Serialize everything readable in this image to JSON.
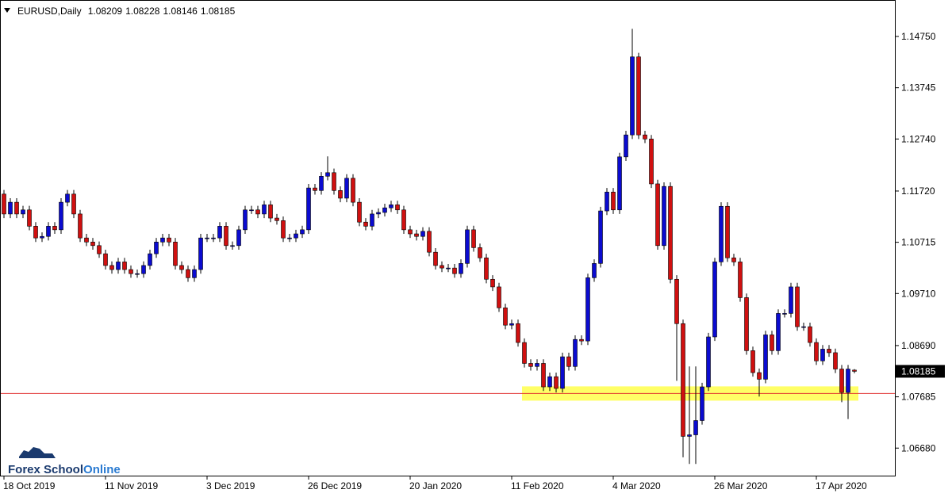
{
  "chart_data": {
    "type": "candlestick",
    "title": "EURUSD,Daily",
    "watermark": [
      "Forex School",
      "Online"
    ],
    "categories": [
      "18 Oct 2019",
      null,
      null,
      null,
      null,
      null,
      null,
      null,
      null,
      null,
      null,
      null,
      null,
      null,
      null,
      null,
      "11 Nov 2019",
      null,
      null,
      null,
      null,
      null,
      null,
      null,
      null,
      null,
      null,
      null,
      null,
      null,
      null,
      null,
      "3 Dec 2019",
      null,
      null,
      null,
      null,
      null,
      null,
      null,
      null,
      null,
      null,
      null,
      null,
      null,
      null,
      null,
      "26 Dec 2019",
      null,
      null,
      null,
      null,
      null,
      null,
      null,
      null,
      null,
      null,
      null,
      null,
      null,
      null,
      null,
      "20 Jan 2020",
      null,
      null,
      null,
      null,
      null,
      null,
      null,
      null,
      null,
      null,
      null,
      null,
      null,
      null,
      null,
      "11 Feb 2020",
      null,
      null,
      null,
      null,
      null,
      null,
      null,
      null,
      null,
      null,
      null,
      null,
      null,
      null,
      null,
      "4 Mar 2020",
      null,
      null,
      null,
      null,
      null,
      null,
      null,
      null,
      null,
      null,
      null,
      null,
      null,
      null,
      null,
      "26 Mar 2020",
      null,
      null,
      null,
      null,
      null,
      null,
      null,
      null,
      null,
      null,
      null,
      null,
      null,
      null,
      null,
      "17 Apr 2020",
      null,
      null,
      null,
      null,
      null,
      null
    ],
    "open": [
      1.1166,
      1.1127,
      1.115,
      1.1127,
      1.1135,
      1.1103,
      1.108,
      1.1083,
      1.1103,
      1.1096,
      1.115,
      1.1166,
      1.1127,
      1.108,
      1.1072,
      1.1065,
      1.1049,
      1.1026,
      1.1018,
      1.1033,
      1.1018,
      1.101,
      1.101,
      1.1026,
      1.1049,
      1.1072,
      1.108,
      1.1072,
      1.1026,
      1.1018,
      1.1002,
      1.1018,
      1.108,
      1.108,
      1.108,
      1.1103,
      1.1065,
      1.1065,
      1.1096,
      1.1135,
      1.1135,
      1.1127,
      1.1145,
      1.1119,
      1.1114,
      1.108,
      1.108,
      1.1088,
      1.1096,
      1.1178,
      1.1173,
      1.1201,
      1.1208,
      1.1173,
      1.1158,
      1.1197,
      1.115,
      1.1111,
      1.1103,
      1.1127,
      1.113,
      1.1139,
      1.1145,
      1.1135,
      1.1096,
      1.1088,
      1.1083,
      1.1093,
      1.1052,
      1.1026,
      1.1021,
      1.1021,
      1.101,
      1.103,
      1.1096,
      1.1061,
      1.1041,
      1.0999,
      1.0984,
      1.0943,
      1.0909,
      1.0912,
      1.0875,
      1.0834,
      1.0828,
      1.0834,
      1.0788,
      1.0808,
      1.0785,
      1.0847,
      1.0828,
      1.0881,
      1.0878,
      1.1002,
      1.103,
      1.1133,
      1.117,
      1.1135,
      1.1239,
      1.1282,
      1.1435,
      1.1282,
      1.1274,
      1.1186,
      1.1065,
      1.1181,
      1.0999,
      1.0912,
      1.0691,
      1.0694,
      1.0722,
      1.0788,
      1.0886,
      1.1033,
      1.1142,
      1.1041,
      1.1033,
      1.0963,
      1.0859,
      1.0816,
      1.0803,
      1.089,
      1.0859,
      1.0932,
      1.0932,
      1.0984,
      1.0906,
      1.0906,
      1.0875,
      1.0839,
      1.0862,
      1.0855,
      1.0823,
      1.0777,
      1.08209
    ],
    "high": [
      1.1174,
      1.1158,
      1.1158,
      1.1143,
      1.1143,
      1.1111,
      1.1091,
      1.1111,
      1.1111,
      1.1158,
      1.1174,
      1.1174,
      1.1135,
      1.1088,
      1.108,
      1.1073,
      1.1057,
      1.1034,
      1.1041,
      1.1041,
      1.1026,
      1.1018,
      1.1034,
      1.1057,
      1.108,
      1.1088,
      1.1088,
      1.108,
      1.1034,
      1.1026,
      1.1026,
      1.1088,
      1.1088,
      1.1088,
      1.1111,
      1.1111,
      1.1073,
      1.1104,
      1.1143,
      1.1143,
      1.1143,
      1.1153,
      1.1153,
      1.1127,
      1.1122,
      1.1088,
      1.1096,
      1.1104,
      1.1186,
      1.1186,
      1.1209,
      1.124,
      1.1216,
      1.1181,
      1.1205,
      1.1205,
      1.1158,
      1.1119,
      1.1135,
      1.1138,
      1.1147,
      1.1153,
      1.1153,
      1.1143,
      1.1104,
      1.1096,
      1.1101,
      1.1101,
      1.106,
      1.1034,
      1.1029,
      1.1029,
      1.1038,
      1.1104,
      1.1104,
      1.1069,
      1.1049,
      1.1007,
      1.0992,
      1.0951,
      1.092,
      1.092,
      1.0883,
      1.0842,
      1.0842,
      1.0842,
      1.0816,
      1.0816,
      1.0855,
      1.0855,
      1.0889,
      1.0889,
      1.101,
      1.1038,
      1.1141,
      1.1178,
      1.1178,
      1.1247,
      1.129,
      1.149,
      1.1443,
      1.129,
      1.1282,
      1.1194,
      1.1189,
      1.1189,
      1.1007,
      1.092,
      1.0828,
      1.0828,
      1.0796,
      1.0894,
      1.1041,
      1.115,
      1.115,
      1.1049,
      1.1041,
      1.0971,
      1.0867,
      1.0824,
      1.0898,
      1.0898,
      1.094,
      1.094,
      1.0992,
      1.0992,
      1.0914,
      1.0914,
      1.0883,
      1.087,
      1.087,
      1.0863,
      1.0831,
      1.0831,
      1.08228
    ],
    "low": [
      1.1119,
      1.1119,
      1.1119,
      1.1119,
      1.1095,
      1.1072,
      1.1072,
      1.1075,
      1.1088,
      1.1088,
      1.1142,
      1.1119,
      1.1072,
      1.1064,
      1.1057,
      1.1041,
      1.1018,
      1.101,
      1.101,
      1.101,
      1.1002,
      1.1002,
      1.1002,
      1.1018,
      1.1041,
      1.1064,
      1.1064,
      1.1018,
      1.101,
      1.0994,
      1.0994,
      1.101,
      1.1072,
      1.1072,
      1.1072,
      1.1057,
      1.1057,
      1.1057,
      1.1088,
      1.1127,
      1.1119,
      1.1119,
      1.1111,
      1.1106,
      1.1072,
      1.1072,
      1.1072,
      1.108,
      1.1088,
      1.1165,
      1.1165,
      1.1193,
      1.1165,
      1.115,
      1.115,
      1.1142,
      1.1103,
      1.1095,
      1.1095,
      1.1119,
      1.1122,
      1.1131,
      1.1127,
      1.1088,
      1.108,
      1.1075,
      1.1075,
      1.1044,
      1.1018,
      1.1013,
      1.1013,
      1.1002,
      1.1002,
      1.1022,
      1.1053,
      1.1033,
      1.0991,
      1.0976,
      1.0935,
      1.0901,
      1.0901,
      1.0867,
      1.0826,
      1.082,
      1.082,
      1.078,
      1.078,
      1.0777,
      1.0777,
      1.082,
      1.082,
      1.087,
      1.087,
      1.0994,
      1.1022,
      1.1125,
      1.1127,
      1.1127,
      1.1231,
      1.1274,
      1.1274,
      1.1266,
      1.1178,
      1.1057,
      1.1057,
      1.0991,
      1.08,
      1.065,
      1.0637,
      1.0637,
      1.0714,
      1.078,
      1.0878,
      1.1025,
      1.1033,
      1.1025,
      1.0955,
      1.0851,
      1.0808,
      1.0769,
      1.0795,
      1.0851,
      1.0851,
      1.0924,
      1.0924,
      1.0898,
      1.0898,
      1.0867,
      1.0831,
      1.0831,
      1.0847,
      1.0815,
      1.0758,
      1.0725,
      1.08146
    ],
    "close": [
      1.1127,
      1.115,
      1.1127,
      1.1135,
      1.1103,
      1.108,
      1.1083,
      1.1103,
      1.1096,
      1.115,
      1.1166,
      1.1127,
      1.108,
      1.1072,
      1.1065,
      1.1049,
      1.1026,
      1.1018,
      1.1033,
      1.1018,
      1.101,
      1.101,
      1.1026,
      1.1049,
      1.1072,
      1.108,
      1.1072,
      1.1026,
      1.1018,
      1.1002,
      1.1018,
      1.108,
      1.108,
      1.108,
      1.1103,
      1.1065,
      1.1065,
      1.1096,
      1.1135,
      1.1135,
      1.1127,
      1.1145,
      1.1119,
      1.1114,
      1.108,
      1.108,
      1.1088,
      1.1096,
      1.1178,
      1.1173,
      1.1201,
      1.1208,
      1.1173,
      1.1158,
      1.1197,
      1.115,
      1.1111,
      1.1103,
      1.1127,
      1.113,
      1.1139,
      1.1145,
      1.1135,
      1.1096,
      1.1088,
      1.1083,
      1.1093,
      1.1052,
      1.1026,
      1.1021,
      1.1021,
      1.101,
      1.103,
      1.1096,
      1.1061,
      1.1041,
      1.0999,
      1.0984,
      1.0943,
      1.0909,
      1.0912,
      1.0875,
      1.0834,
      1.0828,
      1.0834,
      1.0788,
      1.0808,
      1.0785,
      1.0847,
      1.0828,
      1.0881,
      1.0878,
      1.1002,
      1.103,
      1.1133,
      1.117,
      1.1135,
      1.1239,
      1.1282,
      1.1435,
      1.1282,
      1.1274,
      1.1186,
      1.1065,
      1.1181,
      1.0999,
      1.0912,
      1.0691,
      1.0694,
      1.0722,
      1.0788,
      1.0886,
      1.1033,
      1.1142,
      1.1041,
      1.1033,
      1.0963,
      1.0859,
      1.0816,
      1.0803,
      1.089,
      1.0859,
      1.0932,
      1.0932,
      1.0984,
      1.0906,
      1.0906,
      1.0875,
      1.0839,
      1.0862,
      1.0855,
      1.0823,
      1.0777,
      1.0823,
      1.08185
    ],
    "up_color": "#0b0bd0",
    "down_color": "#d01010",
    "ylim": [
      1.0614,
      1.15465
    ],
    "yticks": [
      {
        "value": 1.1475,
        "label": "1.14750"
      },
      1.13745,
      {
        "value": 1.1274,
        "label": "1.12740"
      },
      {
        "value": 1.1172,
        "label": "1.11720"
      },
      1.10715,
      {
        "value": 1.0971,
        "label": "1.09710"
      },
      {
        "value": 1.0869,
        "label": "1.08690"
      },
      1.07685,
      {
        "value": 1.0668,
        "label": "1.06680"
      }
    ],
    "support_line": 1.0775,
    "support_line_color": "#e03030",
    "support_zone": [
      1.0761,
      1.0789
    ],
    "support_zone_color": "#ffff66",
    "grid": false
  }
}
